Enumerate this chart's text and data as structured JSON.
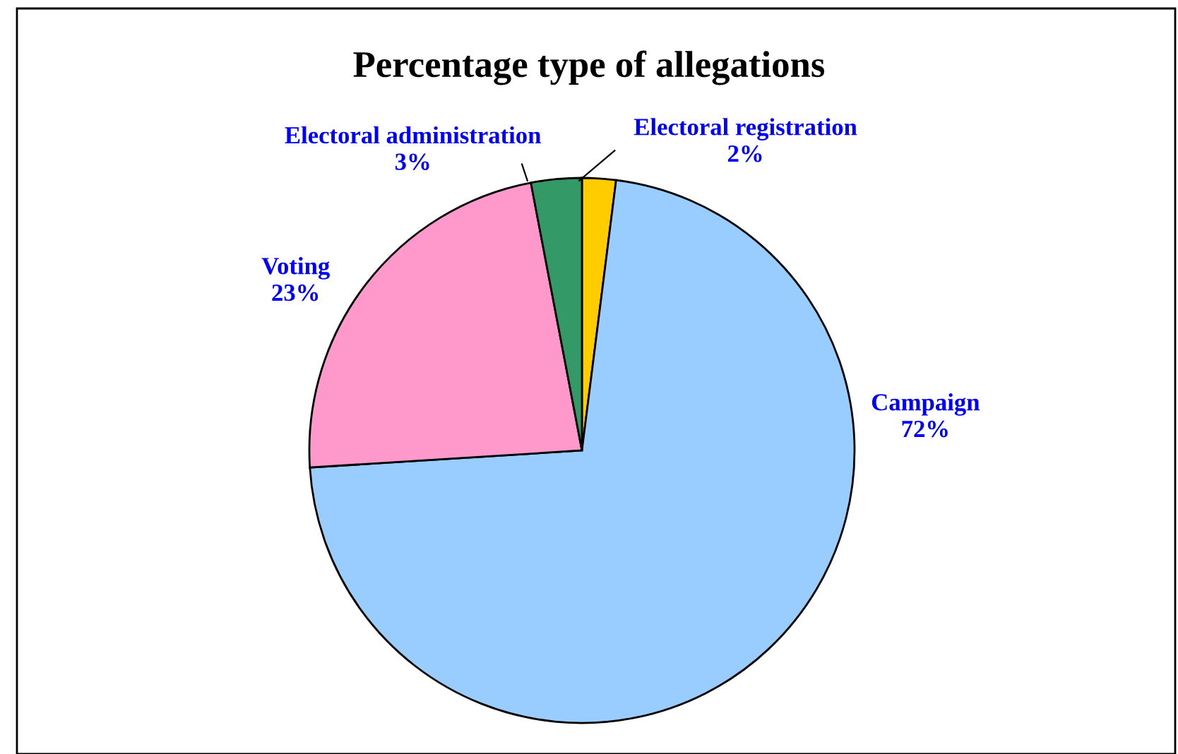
{
  "chart_data": {
    "type": "pie",
    "title": "Percentage type of allegations",
    "categories": [
      "Electoral registration",
      "Campaign",
      "Voting",
      "Electoral administration"
    ],
    "values": [
      2,
      72,
      23,
      3
    ],
    "colors": [
      "#ffcc00",
      "#99ccff",
      "#ff99cc",
      "#339966"
    ],
    "value_labels": [
      "2%",
      "72%",
      "23%",
      "3%"
    ],
    "legend": false
  }
}
